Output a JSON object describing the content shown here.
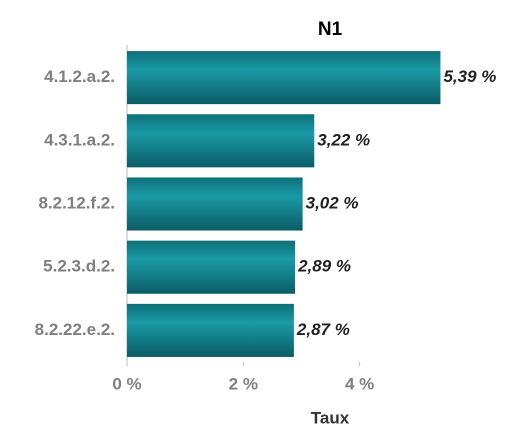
{
  "chart_data": {
    "type": "bar",
    "orientation": "horizontal",
    "title": "N1",
    "x_label": "Taux",
    "categories": [
      "4.1.2.a.2.",
      "4.3.1.a.2.",
      "8.2.12.f.2.",
      "5.2.3.d.2.",
      "8.2.22.e.2."
    ],
    "values": [
      5.39,
      3.22,
      3.02,
      2.89,
      2.87
    ],
    "value_labels": [
      "5,39 %",
      "3,22 %",
      "3,02 %",
      "2,89 %",
      "2,87 %"
    ],
    "color": "#1a9aa6",
    "xlim": [
      0,
      6.5
    ],
    "xticks": [
      {
        "value": 0,
        "label": "0 %"
      },
      {
        "value": 2,
        "label": "2 %"
      },
      {
        "value": 4,
        "label": "4 %"
      }
    ],
    "grid": false
  }
}
